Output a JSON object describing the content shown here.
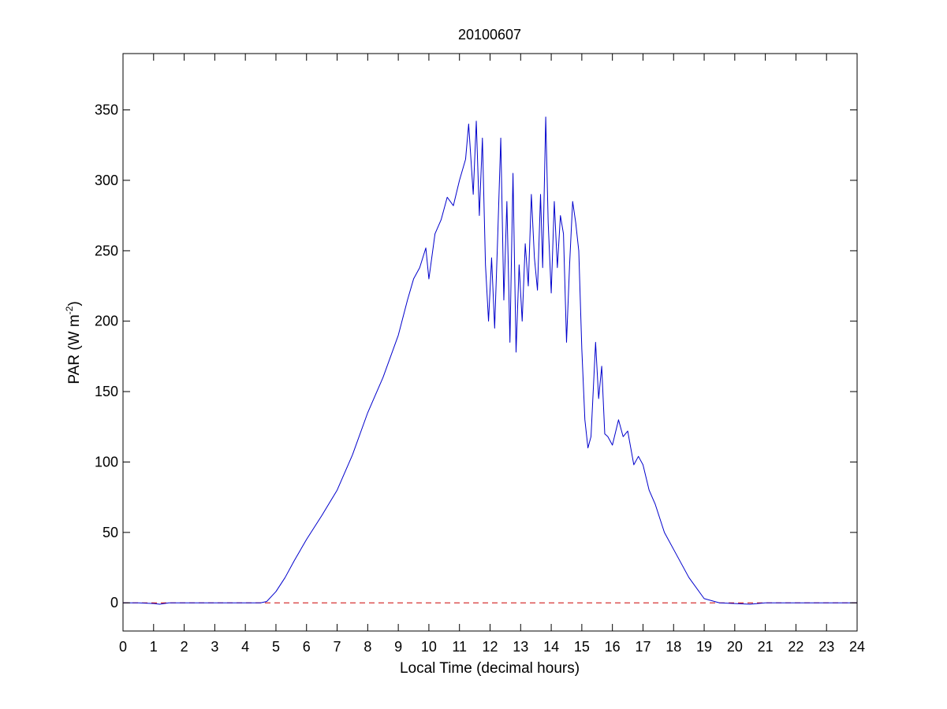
{
  "chart_data": {
    "type": "line",
    "title": "20100607",
    "xlabel": "Local Time (decimal hours)",
    "ylabel": {
      "main": "PAR (W m",
      "sup": "-2",
      "close": ")"
    },
    "xlim": [
      0,
      24
    ],
    "ylim": [
      -20,
      390
    ],
    "xticks": [
      0,
      1,
      2,
      3,
      4,
      5,
      6,
      7,
      8,
      9,
      10,
      11,
      12,
      13,
      14,
      15,
      16,
      17,
      18,
      19,
      20,
      21,
      22,
      23,
      24
    ],
    "yticks": [
      0,
      50,
      100,
      150,
      200,
      250,
      300,
      350
    ],
    "grid": false,
    "box": true,
    "series": [
      {
        "color": "#0000cc",
        "style": "solid",
        "points": [
          [
            0,
            0
          ],
          [
            0.5,
            0
          ],
          [
            1.0,
            -0.5
          ],
          [
            1.2,
            -1
          ],
          [
            1.5,
            0
          ],
          [
            2,
            0
          ],
          [
            3,
            0
          ],
          [
            4,
            0
          ],
          [
            4.5,
            0
          ],
          [
            4.7,
            1
          ],
          [
            5.0,
            8
          ],
          [
            5.3,
            18
          ],
          [
            5.6,
            30
          ],
          [
            6.0,
            45
          ],
          [
            6.5,
            62
          ],
          [
            7.0,
            80
          ],
          [
            7.5,
            105
          ],
          [
            8.0,
            135
          ],
          [
            8.5,
            160
          ],
          [
            9.0,
            190
          ],
          [
            9.3,
            215
          ],
          [
            9.5,
            230
          ],
          [
            9.7,
            238
          ],
          [
            9.9,
            252
          ],
          [
            10.0,
            230
          ],
          [
            10.2,
            262
          ],
          [
            10.4,
            272
          ],
          [
            10.6,
            288
          ],
          [
            10.8,
            282
          ],
          [
            11.0,
            300
          ],
          [
            11.2,
            315
          ],
          [
            11.3,
            340
          ],
          [
            11.45,
            290
          ],
          [
            11.55,
            342
          ],
          [
            11.65,
            275
          ],
          [
            11.75,
            330
          ],
          [
            11.85,
            240
          ],
          [
            11.95,
            200
          ],
          [
            12.05,
            245
          ],
          [
            12.15,
            195
          ],
          [
            12.25,
            260
          ],
          [
            12.35,
            330
          ],
          [
            12.45,
            215
          ],
          [
            12.55,
            285
          ],
          [
            12.65,
            185
          ],
          [
            12.75,
            305
          ],
          [
            12.85,
            178
          ],
          [
            12.95,
            240
          ],
          [
            13.05,
            200
          ],
          [
            13.15,
            255
          ],
          [
            13.25,
            225
          ],
          [
            13.35,
            290
          ],
          [
            13.45,
            245
          ],
          [
            13.55,
            222
          ],
          [
            13.65,
            290
          ],
          [
            13.72,
            238
          ],
          [
            13.82,
            345
          ],
          [
            13.9,
            270
          ],
          [
            14.0,
            220
          ],
          [
            14.1,
            285
          ],
          [
            14.2,
            238
          ],
          [
            14.3,
            275
          ],
          [
            14.4,
            262
          ],
          [
            14.5,
            185
          ],
          [
            14.6,
            240
          ],
          [
            14.7,
            285
          ],
          [
            14.8,
            270
          ],
          [
            14.9,
            250
          ],
          [
            15.0,
            180
          ],
          [
            15.1,
            130
          ],
          [
            15.2,
            110
          ],
          [
            15.3,
            118
          ],
          [
            15.45,
            185
          ],
          [
            15.55,
            145
          ],
          [
            15.65,
            168
          ],
          [
            15.75,
            120
          ],
          [
            15.85,
            118
          ],
          [
            16.0,
            112
          ],
          [
            16.2,
            130
          ],
          [
            16.35,
            118
          ],
          [
            16.5,
            122
          ],
          [
            16.7,
            98
          ],
          [
            16.85,
            104
          ],
          [
            17.0,
            98
          ],
          [
            17.2,
            80
          ],
          [
            17.4,
            70
          ],
          [
            17.7,
            50
          ],
          [
            18.0,
            38
          ],
          [
            18.5,
            18
          ],
          [
            19.0,
            3
          ],
          [
            19.5,
            0
          ],
          [
            20,
            -0.5
          ],
          [
            20.5,
            -1
          ],
          [
            21,
            0
          ],
          [
            22,
            0
          ],
          [
            23,
            0
          ],
          [
            24,
            0
          ]
        ]
      },
      {
        "color": "#cc0000",
        "style": "dashed",
        "points": [
          [
            0,
            0
          ],
          [
            24,
            0
          ]
        ]
      }
    ]
  }
}
